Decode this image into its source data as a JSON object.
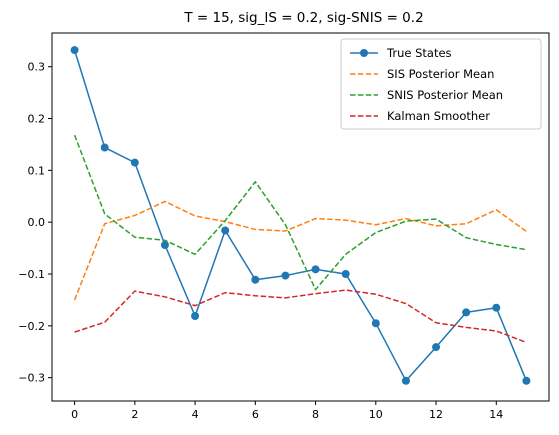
{
  "chart_data": {
    "type": "line",
    "title": "T = 15, sig_IS = 0.2, sig-SNIS = 0.2",
    "xlabel": "",
    "ylabel": "",
    "xlim": [
      -0.75,
      15.75
    ],
    "ylim": [
      -0.345,
      0.365
    ],
    "x": [
      0,
      1,
      2,
      3,
      4,
      5,
      6,
      7,
      8,
      9,
      10,
      11,
      12,
      13,
      14,
      15
    ],
    "xticks": [
      0,
      2,
      4,
      6,
      8,
      10,
      12,
      14
    ],
    "xtick_labels": [
      "0",
      "2",
      "4",
      "6",
      "8",
      "10",
      "12",
      "14"
    ],
    "yticks": [
      0.3,
      0.2,
      0.1,
      0.0,
      -0.1,
      -0.2,
      -0.3
    ],
    "ytick_labels": [
      "0.3",
      "0.2",
      "0.1",
      "0.0",
      "−0.1",
      "−0.2",
      "−0.3"
    ],
    "grid": false,
    "legend": "top-right",
    "series": [
      {
        "name": "True States",
        "color": "#1f77b4",
        "style": "solid-markers",
        "values": [
          0.332,
          0.144,
          0.115,
          -0.044,
          -0.181,
          -0.016,
          -0.111,
          -0.103,
          -0.091,
          -0.1,
          -0.195,
          -0.306,
          -0.241,
          -0.174,
          -0.165,
          -0.306
        ]
      },
      {
        "name": "SIS Posterior Mean",
        "color": "#ff7f0e",
        "style": "dashed",
        "values": [
          -0.15,
          -0.003,
          0.013,
          0.04,
          0.012,
          0.001,
          -0.014,
          -0.017,
          0.007,
          0.004,
          -0.005,
          0.007,
          -0.007,
          -0.003,
          0.024,
          -0.018
        ]
      },
      {
        "name": "SNIS Posterior Mean",
        "color": "#2ca02c",
        "style": "dashed",
        "values": [
          0.168,
          0.016,
          -0.029,
          -0.035,
          -0.062,
          0.003,
          0.078,
          -0.005,
          -0.13,
          -0.062,
          -0.02,
          0.002,
          0.006,
          -0.03,
          -0.043,
          -0.053
        ]
      },
      {
        "name": "Kalman Smoother",
        "color": "#d62728",
        "style": "dashed",
        "values": [
          -0.212,
          -0.193,
          -0.133,
          -0.144,
          -0.161,
          -0.136,
          -0.142,
          -0.146,
          -0.138,
          -0.131,
          -0.139,
          -0.157,
          -0.194,
          -0.203,
          -0.21,
          -0.232
        ]
      }
    ]
  }
}
